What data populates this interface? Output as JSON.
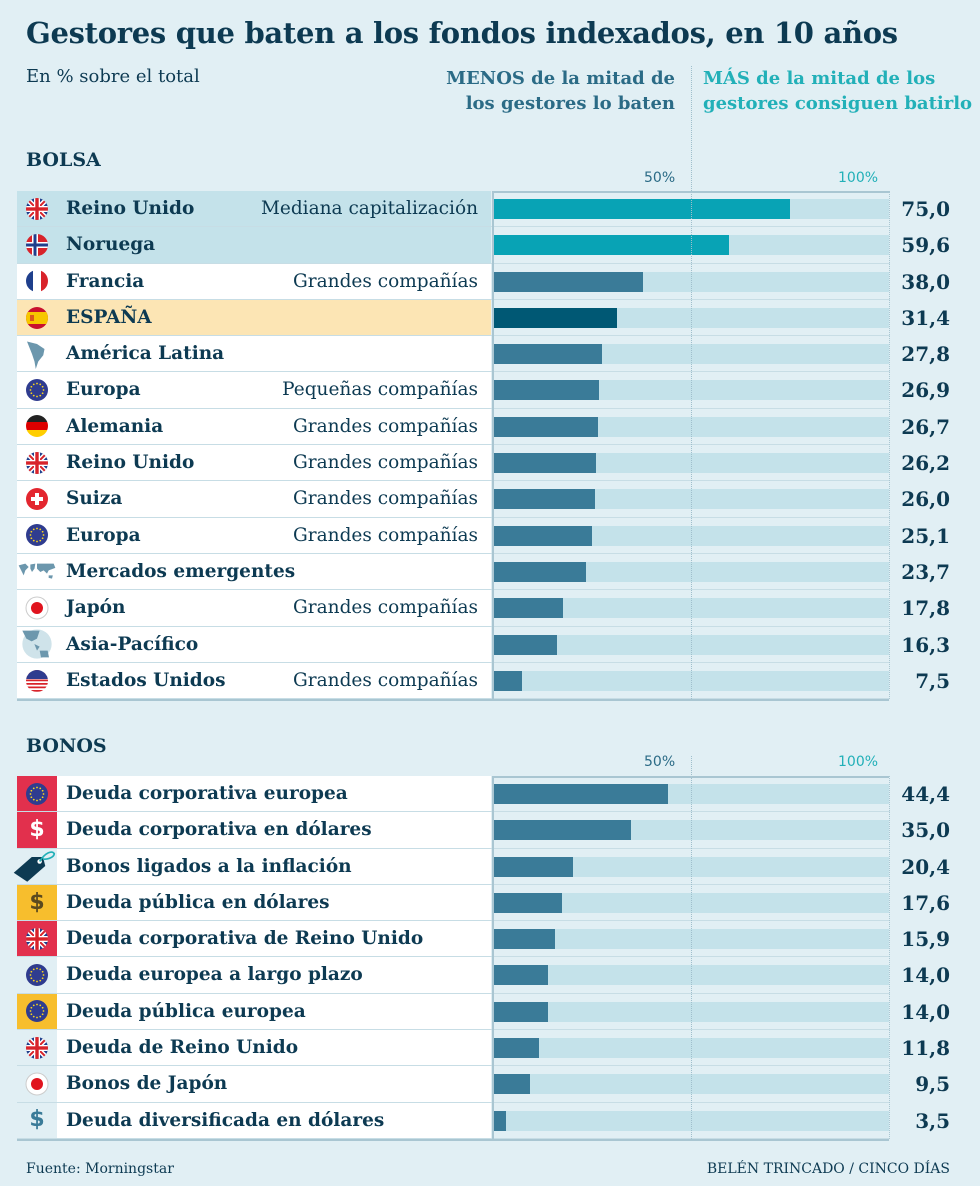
{
  "title": "Gestores que baten a los fondos indexados, en 10 años",
  "subtitle": "En % sobre el total",
  "legend": {
    "less": "MENOS de la mitad de los gestores lo baten",
    "more": "MÁS de la mitad de los gestores consiguen batirlo"
  },
  "colors": {
    "above_half": "#08a3b5",
    "below_half": "#3a7b98",
    "spain": "#005874",
    "track": "#c4e2ea",
    "background": "#e1eff4"
  },
  "footer": {
    "source": "Fuente: Morningstar",
    "credit": "BELÉN TRINCADO / CINCO DÍAS"
  },
  "chart_data": [
    {
      "type": "bar",
      "orientation": "horizontal",
      "title": "BOLSA",
      "xlim": [
        0,
        100
      ],
      "ticks": [
        "50%",
        "100%"
      ],
      "grid": "dotted line at 50% and 100%",
      "rows": [
        {
          "icon": "uk-flag-icon",
          "name": "Reino Unido",
          "sub": "Mediana capitalización",
          "value": 75.0,
          "label": "75,0",
          "highlight": "blue"
        },
        {
          "icon": "norway-flag-icon",
          "name": "Noruega",
          "sub": "",
          "value": 59.6,
          "label": "59,6",
          "highlight": "blue"
        },
        {
          "icon": "france-flag-icon",
          "name": "Francia",
          "sub": "Grandes compañías",
          "value": 38.0,
          "label": "38,0"
        },
        {
          "icon": "spain-flag-icon",
          "name": "ESPAÑA",
          "sub": "",
          "value": 31.4,
          "label": "31,4",
          "highlight": "gold"
        },
        {
          "icon": "latin-america-map-icon",
          "name": "América Latina",
          "sub": "",
          "value": 27.8,
          "label": "27,8"
        },
        {
          "icon": "eu-flag-icon",
          "name": "Europa",
          "sub": "Pequeñas compañías",
          "value": 26.9,
          "label": "26,9"
        },
        {
          "icon": "germany-flag-icon",
          "name": "Alemania",
          "sub": "Grandes compañías",
          "value": 26.7,
          "label": "26,7"
        },
        {
          "icon": "uk-flag-icon",
          "name": "Reino Unido",
          "sub": "Grandes compañías",
          "value": 26.2,
          "label": "26,2"
        },
        {
          "icon": "switzerland-flag-icon",
          "name": "Suiza",
          "sub": "Grandes compañías",
          "value": 26.0,
          "label": "26,0"
        },
        {
          "icon": "eu-flag-icon",
          "name": "Europa",
          "sub": "Grandes compañías",
          "value": 25.1,
          "label": "25,1"
        },
        {
          "icon": "world-map-icon",
          "name": "Mercados emergentes",
          "sub": "",
          "value": 23.7,
          "label": "23,7"
        },
        {
          "icon": "japan-flag-icon",
          "name": "Japón",
          "sub": "Grandes compañías",
          "value": 17.8,
          "label": "17,8"
        },
        {
          "icon": "asia-pacific-map-icon",
          "name": "Asia-Pacífico",
          "sub": "",
          "value": 16.3,
          "label": "16,3"
        },
        {
          "icon": "usa-flag-icon",
          "name": "Estados Unidos",
          "sub": "Grandes compañías",
          "value": 7.5,
          "label": "7,5"
        }
      ]
    },
    {
      "type": "bar",
      "orientation": "horizontal",
      "title": "BONOS",
      "xlim": [
        0,
        100
      ],
      "ticks": [
        "50%",
        "100%"
      ],
      "grid": "dotted line at 50% and 100%",
      "rows": [
        {
          "icon": "eu-flag-icon",
          "iconBg": "red",
          "name": "Deuda corporativa europea",
          "value": 44.4,
          "label": "44,4"
        },
        {
          "icon": "dollar-icon",
          "iconBg": "red",
          "name": "Deuda corporativa en dólares",
          "value": 35.0,
          "label": "35,0"
        },
        {
          "icon": "price-tag-icon",
          "iconBg": "plain",
          "name": "Bonos ligados a la inflación",
          "value": 20.4,
          "label": "20,4"
        },
        {
          "icon": "dollar-icon",
          "iconBg": "gold",
          "name": "Deuda pública en dólares",
          "value": 17.6,
          "label": "17,6"
        },
        {
          "icon": "uk-flag-icon",
          "iconBg": "red",
          "name": "Deuda corporativa de Reino Unido",
          "value": 15.9,
          "label": "15,9"
        },
        {
          "icon": "eu-flag-icon",
          "iconBg": "plain",
          "name": "Deuda europea a largo plazo",
          "value": 14.0,
          "label": "14,0"
        },
        {
          "icon": "eu-flag-icon",
          "iconBg": "gold",
          "name": "Deuda pública europea",
          "value": 14.0,
          "label": "14,0"
        },
        {
          "icon": "uk-flag-icon",
          "iconBg": "plain",
          "name": "Deuda de Reino Unido",
          "value": 11.8,
          "label": "11,8"
        },
        {
          "icon": "japan-flag-icon",
          "iconBg": "plain",
          "name": "Bonos de Japón",
          "value": 9.5,
          "label": "9,5"
        },
        {
          "icon": "dollar-icon",
          "iconBg": "plain",
          "name": "Deuda diversificada en dólares",
          "value": 3.5,
          "label": "3,5"
        }
      ]
    }
  ]
}
